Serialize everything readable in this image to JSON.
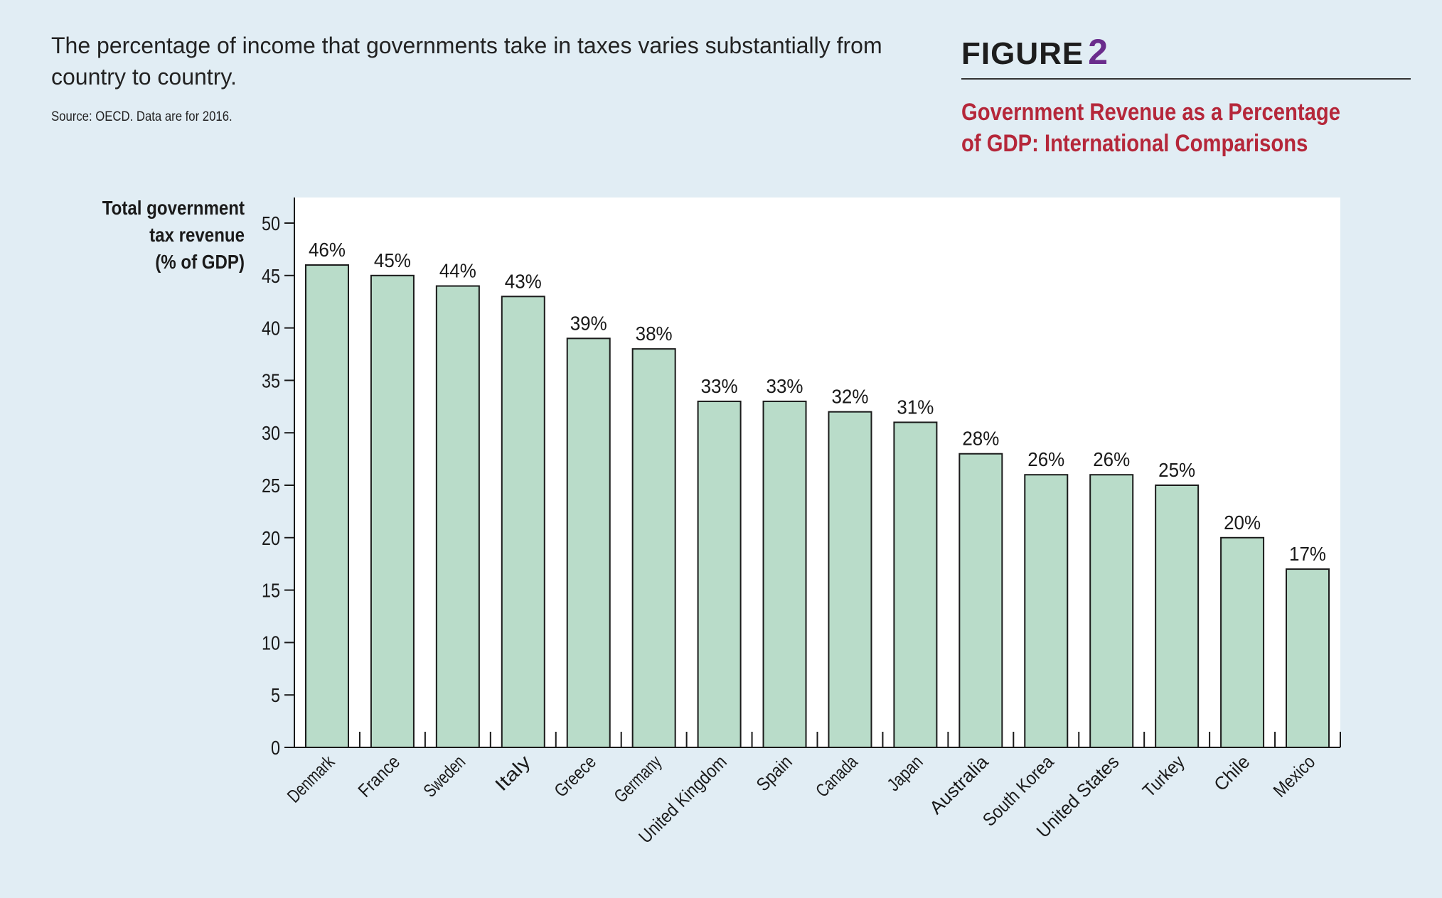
{
  "header": {
    "intro": "The percentage of income that governments take in taxes varies substantially from country to country.",
    "source": "Source: OECD. Data are for 2016.",
    "figure_word": "FIGURE",
    "figure_number": "2",
    "figure_title_line1": "Government Revenue as a Percentage",
    "figure_title_line2": "of GDP: International Comparisons"
  },
  "colors": {
    "background": "#e1edf4",
    "bar_fill": "#b9dcc9",
    "bar_stroke": "#1a1a1a",
    "figure_number": "#6a2c8c",
    "figure_title": "#b5273a"
  },
  "chart_data": {
    "type": "bar",
    "title": "Government Revenue as a Percentage of GDP: International Comparisons",
    "ylabel_lines": [
      "Total government",
      "tax revenue",
      "(% of GDP)"
    ],
    "xlabel": "",
    "categories": [
      "Denmark",
      "France",
      "Sweden",
      "Italy",
      "Greece",
      "Germany",
      "United Kingdom",
      "Spain",
      "Canada",
      "Japan",
      "Australia",
      "South Korea",
      "United States",
      "Turkey",
      "Chile",
      "Mexico"
    ],
    "values": [
      46,
      45,
      44,
      43,
      39,
      38,
      33,
      33,
      32,
      31,
      28,
      26,
      26,
      25,
      20,
      17
    ],
    "data_labels": [
      "46%",
      "45%",
      "44%",
      "43%",
      "39%",
      "38%",
      "33%",
      "33%",
      "32%",
      "31%",
      "28%",
      "26%",
      "26%",
      "25%",
      "20%",
      "17%"
    ],
    "ylim": [
      0,
      50
    ],
    "yticks": [
      0,
      5,
      10,
      15,
      20,
      25,
      30,
      35,
      40,
      45,
      50
    ],
    "grid": false,
    "legend": "none"
  }
}
